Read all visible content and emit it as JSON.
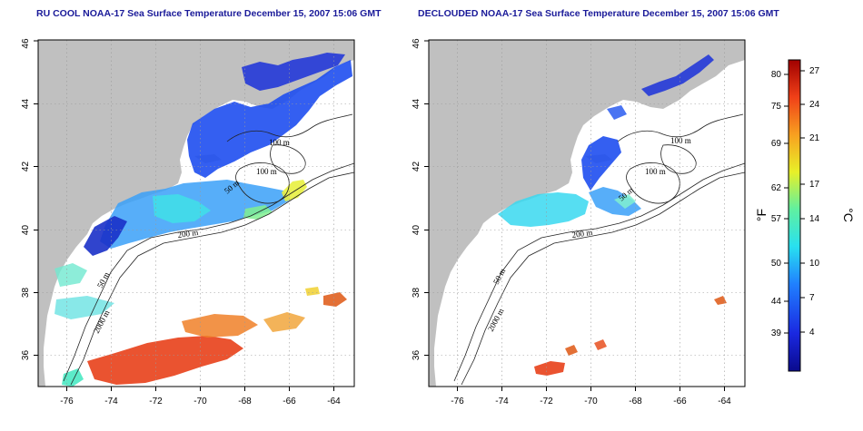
{
  "titles": {
    "left": "RU COOL NOAA-17 Sea Surface Temperature December 15, 2007 15:06 GMT",
    "right": "DECLOUDED NOAA-17 Sea Surface Temperature December 15, 2007 15:06 GMT"
  },
  "axes": {
    "lon_ticks": [
      -76,
      -74,
      -72,
      -70,
      -68,
      -66,
      -64
    ],
    "lon_range": [
      -77.2,
      -63.0
    ],
    "lat_ticks": [
      36,
      38,
      40,
      42,
      44,
      46
    ],
    "lat_range": [
      35.0,
      46.0
    ],
    "grid": "dotted"
  },
  "contour_labels": {
    "left": [
      "100 m",
      "100 m",
      "50 m",
      "200 m",
      "50 m",
      "2000 m"
    ],
    "right": [
      "100 m",
      "100 m",
      "50 m",
      "200 m",
      "50 m",
      "2000 m"
    ]
  },
  "colorbar": {
    "unit_left": "°F",
    "unit_right": "°C",
    "fahrenheit_ticks": [
      "80",
      "75",
      "69",
      "62",
      "57",
      "50",
      "44",
      "39"
    ],
    "celsius_ticks": [
      "27",
      "24",
      "21",
      "17",
      "14",
      "10",
      "7",
      "4"
    ],
    "range_c": [
      0,
      28
    ]
  },
  "colors": {
    "land": "#c0c0c0",
    "cold": "#0a0a8c",
    "cool": "#1e5aff",
    "mid": "#28e0f0",
    "warm": "#f0e028",
    "hot": "#e82a0a"
  }
}
